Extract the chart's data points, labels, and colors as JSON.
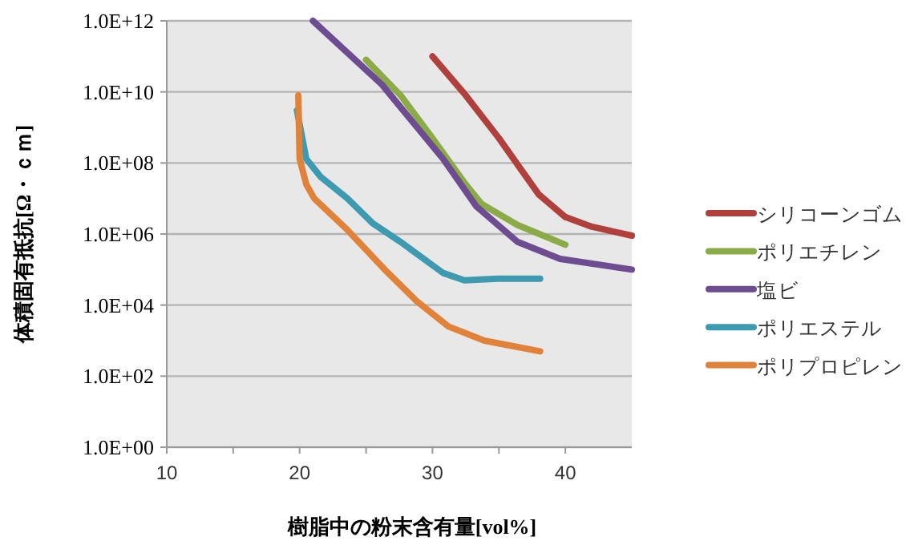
{
  "chart_data": {
    "type": "line",
    "xlabel": "樹脂中の粉末含有量[vol%]",
    "ylabel": "体積固有抵抗[Ω・ｃｍ]",
    "log": "y",
    "grid": "y",
    "legend": "right",
    "marker": "none",
    "line_style": "solid",
    "xlim": [
      10,
      45
    ],
    "xticks": [
      10,
      {
        "value": 15,
        "label": null
      },
      20,
      {
        "value": 25,
        "label": null
      },
      30,
      {
        "value": 35,
        "label": null
      },
      40
    ],
    "ylim": [
      1,
      1000000000000.0
    ],
    "yticks": [
      {
        "value": 1,
        "label": "1.0E+00"
      },
      {
        "value": 100,
        "label": "1.0E+02"
      },
      {
        "value": 10000,
        "label": "1.0E+04"
      },
      {
        "value": 1000000,
        "label": "1.0E+06"
      },
      {
        "value": 100000000,
        "label": "1.0E+08"
      },
      {
        "value": 10000000000,
        "label": "1.0E+10"
      },
      {
        "value": 1000000000000,
        "label": "1.0E+12"
      }
    ],
    "series": [
      {
        "name": "シリコーンゴム",
        "color": "#b0403c",
        "x": [
          30,
          32.5,
          35,
          36.5,
          38,
          40,
          42,
          45
        ],
        "values": [
          100000000000.0,
          8000000000.0,
          500000000.0,
          80000000.0,
          13000000.0,
          3000000.0,
          1600000.0,
          900000.0
        ]
      },
      {
        "name": "ポリエチレン",
        "color": "#8aab45",
        "x": [
          25,
          27.6,
          30,
          32.5,
          33.7,
          36.4,
          40
        ],
        "values": [
          80000000000.0,
          8000000000.0,
          500000000.0,
          25000000.0,
          7000000.0,
          1800000.0,
          500000.0
        ]
      },
      {
        "name": "塩ビ",
        "color": "#6d4c91",
        "x": [
          21,
          26.2,
          30.8,
          33.3,
          36.4,
          39.6,
          45
        ],
        "values": [
          1000000000000.0,
          16000000000.0,
          130000000.0,
          6000000.0,
          600000.0,
          200000.0,
          100000.0
        ]
      },
      {
        "name": "ポリエステル",
        "color": "#3d9ab0",
        "x": [
          19.8,
          20.5,
          21.6,
          23.6,
          25.5,
          27.6,
          30.8,
          32.4,
          34.9,
          38.1
        ],
        "values": [
          3000000000.0,
          130000000.0,
          40000000.0,
          10000000.0,
          2000000.0,
          600000.0,
          80000.0,
          50000.0,
          55000.0,
          55000.0
        ]
      },
      {
        "name": "ポリプロピレン",
        "color": "#e0823a",
        "x": [
          19.9,
          20,
          20.5,
          21.1,
          23.6,
          26.4,
          28.8,
          31.2,
          33.9,
          38.1
        ],
        "values": [
          8000000000.0,
          130000000.0,
          25000000.0,
          10000000.0,
          1300000.0,
          100000.0,
          13000.0,
          2500,
          1000,
          500
        ]
      }
    ]
  }
}
